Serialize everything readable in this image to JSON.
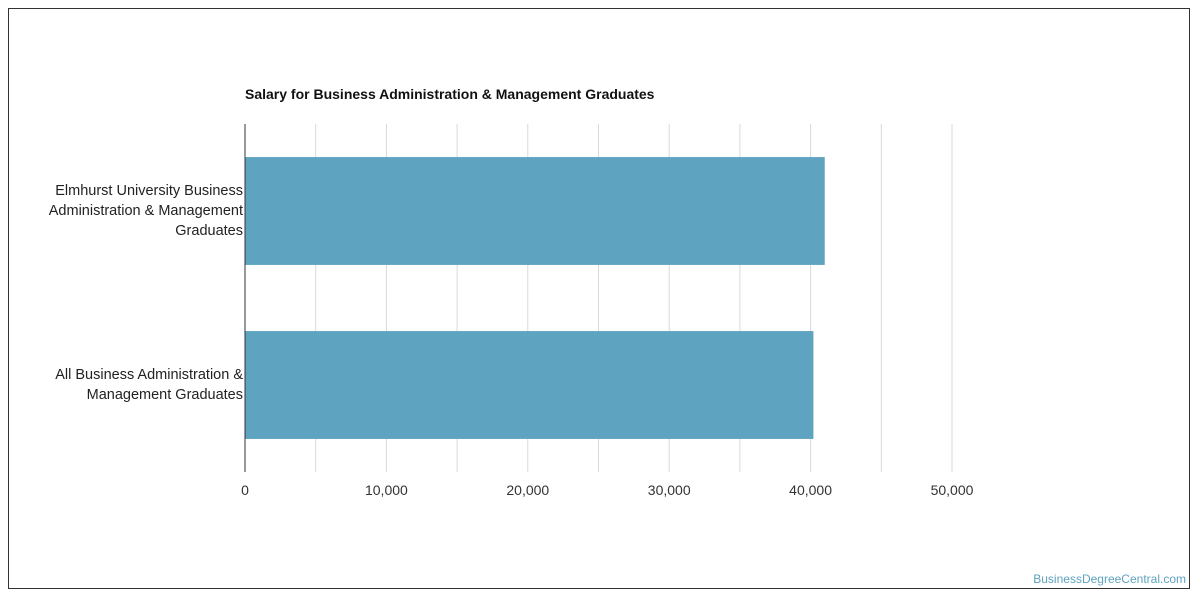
{
  "chart_data": {
    "type": "bar",
    "orientation": "horizontal",
    "title": "Salary for Business Administration & Management Graduates",
    "xlabel": "",
    "ylabel": "",
    "categories": [
      "Elmhurst University Business Administration & Management Graduates",
      "All Business Administration & Management Graduates"
    ],
    "values": [
      41000,
      40200
    ],
    "xlim": [
      0,
      50000
    ],
    "xticks": [
      0,
      10000,
      20000,
      30000,
      40000,
      50000
    ],
    "xtick_labels": [
      "0",
      "10,000",
      "20,000",
      "30,000",
      "40,000",
      "50,000"
    ],
    "grid": true,
    "bar_color": "#5ea3c0"
  },
  "credit": "BusinessDegreeCentral.com"
}
